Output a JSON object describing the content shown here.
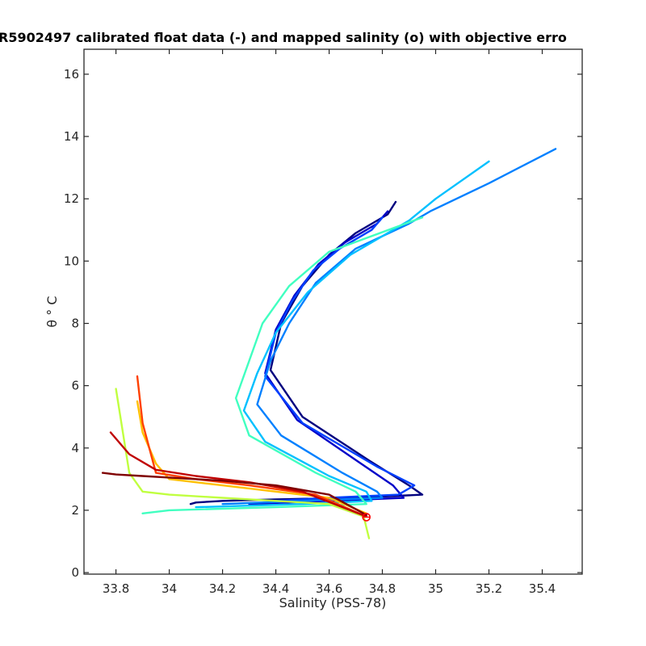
{
  "chart_data": {
    "type": "line",
    "title": "R5902497 calibrated float data (-) and mapped salinity (o) with objective erro",
    "xlabel": "Salinity (PSS-78)",
    "ylabel": "θ ° C",
    "xlim": [
      33.68,
      35.55
    ],
    "ylim": [
      -0.05,
      16.8
    ],
    "xticks": [
      33.8,
      34,
      34.2,
      34.4,
      34.6,
      34.8,
      35,
      35.2,
      35.4
    ],
    "xtick_labels": [
      "33.8",
      "34",
      "34.2",
      "34.4",
      "34.6",
      "34.8",
      "35",
      "35.2",
      "35.4"
    ],
    "yticks": [
      0,
      2,
      4,
      6,
      8,
      10,
      12,
      14,
      16
    ],
    "ytick_labels": [
      "0",
      "2",
      "4",
      "6",
      "8",
      "10",
      "12",
      "14",
      "16"
    ],
    "grid": false,
    "colormap": "jet (profile number, blue = early, red = late)",
    "series": [
      {
        "color": "#00007f",
        "x": [
          34.85,
          34.82,
          34.7,
          34.6,
          34.5,
          34.42,
          34.38,
          34.5,
          34.75,
          34.9,
          34.95,
          34.7,
          34.4,
          34.2,
          34.1,
          34.08
        ],
        "y": [
          11.9,
          11.5,
          10.9,
          10.2,
          9.2,
          8.0,
          6.5,
          5.0,
          3.6,
          2.8,
          2.5,
          2.4,
          2.35,
          2.3,
          2.25,
          2.2
        ]
      },
      {
        "color": "#0000c8",
        "x": [
          34.82,
          34.78,
          34.66,
          34.56,
          34.47,
          34.4,
          34.36,
          34.48,
          34.72,
          34.84,
          34.88,
          34.6,
          34.3
        ],
        "y": [
          11.6,
          11.2,
          10.6,
          9.9,
          8.9,
          7.8,
          6.4,
          4.9,
          3.5,
          2.8,
          2.4,
          2.3,
          2.2
        ]
      },
      {
        "color": "#0040ff",
        "x": [
          34.8,
          34.76,
          34.64,
          34.54,
          34.46,
          34.4,
          34.36,
          34.5,
          34.78,
          34.92,
          34.86,
          34.6,
          34.4
        ],
        "y": [
          11.4,
          11.0,
          10.4,
          9.7,
          8.7,
          7.7,
          6.3,
          4.8,
          3.4,
          2.8,
          2.5,
          2.4,
          2.3
        ]
      },
      {
        "color": "#0080ff",
        "x": [
          35.45,
          35.2,
          34.98,
          34.9,
          34.7,
          34.55,
          34.45,
          34.38,
          34.33,
          34.42,
          34.65,
          34.78,
          34.8,
          34.5,
          34.2
        ],
        "y": [
          13.6,
          12.5,
          11.6,
          11.2,
          10.4,
          9.3,
          8.0,
          6.8,
          5.4,
          4.4,
          3.2,
          2.6,
          2.4,
          2.3,
          2.2
        ]
      },
      {
        "color": "#00c0ff",
        "x": [
          35.2,
          35.0,
          34.9,
          34.68,
          34.52,
          34.4,
          34.33,
          34.28,
          34.36,
          34.6,
          34.74,
          34.76,
          34.5,
          34.1
        ],
        "y": [
          13.2,
          12.0,
          11.3,
          10.2,
          9.0,
          7.7,
          6.4,
          5.2,
          4.2,
          3.1,
          2.6,
          2.3,
          2.2,
          2.1
        ]
      },
      {
        "color": "#40ffc0",
        "x": [
          34.95,
          34.6,
          34.45,
          34.35,
          34.3,
          34.25,
          34.3,
          34.55,
          34.7,
          34.74,
          34.4,
          34.0,
          33.9
        ],
        "y": [
          11.4,
          10.3,
          9.2,
          8.0,
          6.8,
          5.6,
          4.4,
          3.2,
          2.6,
          2.2,
          2.1,
          2.0,
          1.9
        ]
      },
      {
        "color": "#c0ff40",
        "x": [
          34.75,
          34.73,
          34.6,
          34.4,
          34.2,
          34.0,
          33.9,
          33.85,
          33.8
        ],
        "y": [
          1.1,
          1.8,
          2.2,
          2.3,
          2.4,
          2.5,
          2.6,
          3.2,
          5.9
        ]
      },
      {
        "color": "#ffc000",
        "x": [
          34.74,
          34.6,
          34.4,
          34.2,
          34.0,
          33.95,
          33.9,
          33.88
        ],
        "y": [
          1.9,
          2.4,
          2.6,
          2.8,
          3.0,
          3.5,
          4.5,
          5.5
        ]
      },
      {
        "color": "#ff4000",
        "x": [
          34.74,
          34.55,
          34.3,
          34.1,
          33.95,
          33.9,
          33.88
        ],
        "y": [
          1.8,
          2.5,
          2.8,
          3.0,
          3.2,
          4.8,
          6.3
        ]
      },
      {
        "color": "#c00000",
        "x": [
          34.74,
          34.5,
          34.3,
          34.1,
          33.95,
          33.85,
          33.78
        ],
        "y": [
          1.8,
          2.6,
          2.9,
          3.1,
          3.3,
          3.8,
          4.5
        ]
      },
      {
        "color": "#7f0000",
        "x": [
          34.74,
          34.6,
          34.4,
          34.2,
          34.0,
          33.9,
          33.8,
          33.75
        ],
        "y": [
          1.85,
          2.5,
          2.8,
          2.95,
          3.05,
          3.1,
          3.15,
          3.2
        ]
      }
    ],
    "mapped_salinity_marker": {
      "x": 34.74,
      "y": 1.78,
      "color": "#ff0000",
      "shape": "circle"
    }
  }
}
